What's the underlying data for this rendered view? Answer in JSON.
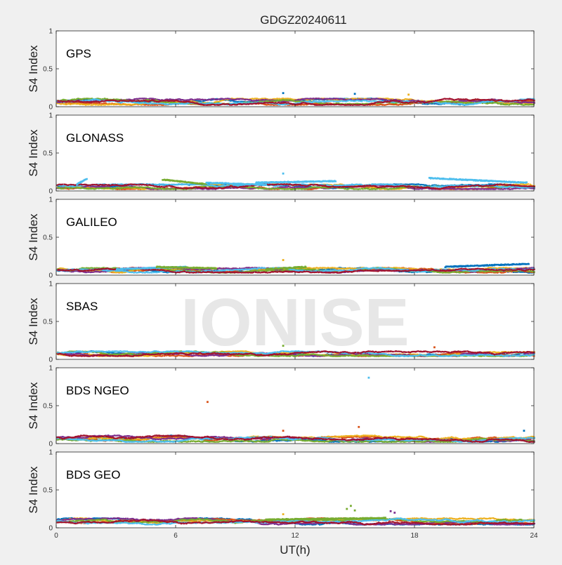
{
  "figure": {
    "title": "GDGZ20240611",
    "xlabel": "UT(h)",
    "watermark": "IONISE"
  },
  "series_colors": [
    "#0072BD",
    "#D95319",
    "#EDB120",
    "#7E2F8E",
    "#77AC30",
    "#4DBEEE",
    "#A2142F"
  ],
  "chart_data": [
    {
      "type": "scatter",
      "panel_label": "GPS",
      "ylabel": "S4 Index",
      "xlim": [
        0,
        24
      ],
      "ylim": [
        0,
        1
      ],
      "xticks": [
        0,
        6,
        12,
        18,
        24
      ],
      "yticks": [
        0,
        0.5,
        1
      ],
      "ytick_labels": [
        "0",
        "0.5",
        "1"
      ],
      "x_tick_labels_shown": false,
      "baseline_range": [
        0.03,
        0.12
      ],
      "spikes": [
        {
          "x": 11.4,
          "y": 0.18,
          "color": "#0072BD"
        },
        {
          "x": 15.0,
          "y": 0.17,
          "color": "#0072BD"
        },
        {
          "x": 17.7,
          "y": 0.16,
          "color": "#EDB120"
        }
      ]
    },
    {
      "type": "scatter",
      "panel_label": "GLONASS",
      "ylabel": "S4 Index",
      "xlim": [
        0,
        24
      ],
      "ylim": [
        0,
        1
      ],
      "xticks": [
        0,
        6,
        12,
        18,
        24
      ],
      "yticks": [
        0,
        0.5,
        1
      ],
      "ytick_labels": [
        "0",
        "0.5",
        "1"
      ],
      "x_tick_labels_shown": false,
      "baseline_range": [
        0.03,
        0.1
      ],
      "arcs": [
        {
          "x0": 1.0,
          "x1": 1.5,
          "y0": 0.1,
          "y1": 0.17,
          "color": "#4DBEEE"
        },
        {
          "x0": 5.3,
          "x1": 7.5,
          "y0": 0.16,
          "y1": 0.1,
          "color": "#77AC30"
        },
        {
          "x0": 7.5,
          "x1": 10.5,
          "y0": 0.12,
          "y1": 0.09,
          "color": "#4DBEEE"
        },
        {
          "x0": 10.0,
          "x1": 14.0,
          "y0": 0.12,
          "y1": 0.14,
          "color": "#4DBEEE"
        },
        {
          "x0": 18.7,
          "x1": 23.6,
          "y0": 0.18,
          "y1": 0.12,
          "color": "#4DBEEE"
        }
      ],
      "spikes": [
        {
          "x": 11.4,
          "y": 0.23,
          "color": "#4DBEEE"
        }
      ]
    },
    {
      "type": "scatter",
      "panel_label": "GALILEO",
      "ylabel": "S4 Index",
      "xlim": [
        0,
        24
      ],
      "ylim": [
        0,
        1
      ],
      "xticks": [
        0,
        6,
        12,
        18,
        24
      ],
      "yticks": [
        0,
        0.5,
        1
      ],
      "ytick_labels": [
        "0",
        "0.5",
        "1"
      ],
      "x_tick_labels_shown": false,
      "baseline_range": [
        0.04,
        0.11
      ],
      "arcs": [
        {
          "x0": 3.0,
          "x1": 6.5,
          "y0": 0.09,
          "y1": 0.12,
          "color": "#4DBEEE"
        },
        {
          "x0": 5.0,
          "x1": 8.0,
          "y0": 0.12,
          "y1": 0.1,
          "color": "#77AC30"
        },
        {
          "x0": 10.5,
          "x1": 12.5,
          "y0": 0.09,
          "y1": 0.12,
          "color": "#77AC30"
        },
        {
          "x0": 19.5,
          "x1": 23.7,
          "y0": 0.12,
          "y1": 0.16,
          "color": "#0072BD"
        }
      ],
      "spikes": [
        {
          "x": 11.4,
          "y": 0.2,
          "color": "#EDB120"
        }
      ]
    },
    {
      "type": "scatter",
      "panel_label": "SBAS",
      "ylabel": "S4 Index",
      "xlim": [
        0,
        24
      ],
      "ylim": [
        0,
        1
      ],
      "xticks": [
        0,
        6,
        12,
        18,
        24
      ],
      "yticks": [
        0,
        0.5,
        1
      ],
      "ytick_labels": [
        "0",
        "0.5",
        "1"
      ],
      "x_tick_labels_shown": false,
      "baseline_range": [
        0.05,
        0.12
      ],
      "spikes": [
        {
          "x": 11.4,
          "y": 0.18,
          "color": "#77AC30"
        },
        {
          "x": 19.0,
          "y": 0.16,
          "color": "#D95319"
        }
      ]
    },
    {
      "type": "scatter",
      "panel_label": "BDS NGEO",
      "ylabel": "S4 Index",
      "xlim": [
        0,
        24
      ],
      "ylim": [
        0,
        1
      ],
      "xticks": [
        0,
        6,
        12,
        18,
        24
      ],
      "yticks": [
        0,
        0.5,
        1
      ],
      "ytick_labels": [
        "0",
        "0.5",
        "1"
      ],
      "x_tick_labels_shown": false,
      "baseline_range": [
        0.03,
        0.12
      ],
      "spikes": [
        {
          "x": 7.6,
          "y": 0.55,
          "color": "#D95319"
        },
        {
          "x": 15.7,
          "y": 0.87,
          "color": "#4DBEEE"
        },
        {
          "x": 11.4,
          "y": 0.17,
          "color": "#D95319"
        },
        {
          "x": 15.2,
          "y": 0.22,
          "color": "#D95319"
        },
        {
          "x": 23.5,
          "y": 0.17,
          "color": "#0072BD"
        }
      ]
    },
    {
      "type": "scatter",
      "panel_label": "BDS GEO",
      "ylabel": "S4 Index",
      "xlim": [
        0,
        24
      ],
      "ylim": [
        0,
        1
      ],
      "xticks": [
        0,
        6,
        12,
        18,
        24
      ],
      "yticks": [
        0,
        0.5,
        1
      ],
      "ytick_labels": [
        "0",
        "0.5",
        "1"
      ],
      "x_tick_labels_shown": true,
      "xtick_labels": [
        "0",
        "6",
        "12",
        "18",
        "24"
      ],
      "baseline_range": [
        0.05,
        0.14
      ],
      "arcs": [
        {
          "x0": 10.5,
          "x1": 16.5,
          "y0": 0.12,
          "y1": 0.14,
          "color": "#77AC30"
        }
      ],
      "spikes": [
        {
          "x": 14.8,
          "y": 0.29,
          "color": "#77AC30"
        },
        {
          "x": 14.6,
          "y": 0.25,
          "color": "#77AC30"
        },
        {
          "x": 15.0,
          "y": 0.23,
          "color": "#77AC30"
        },
        {
          "x": 16.8,
          "y": 0.22,
          "color": "#7E2F8E"
        },
        {
          "x": 17.0,
          "y": 0.2,
          "color": "#7E2F8E"
        },
        {
          "x": 11.4,
          "y": 0.18,
          "color": "#EDB120"
        }
      ]
    }
  ]
}
